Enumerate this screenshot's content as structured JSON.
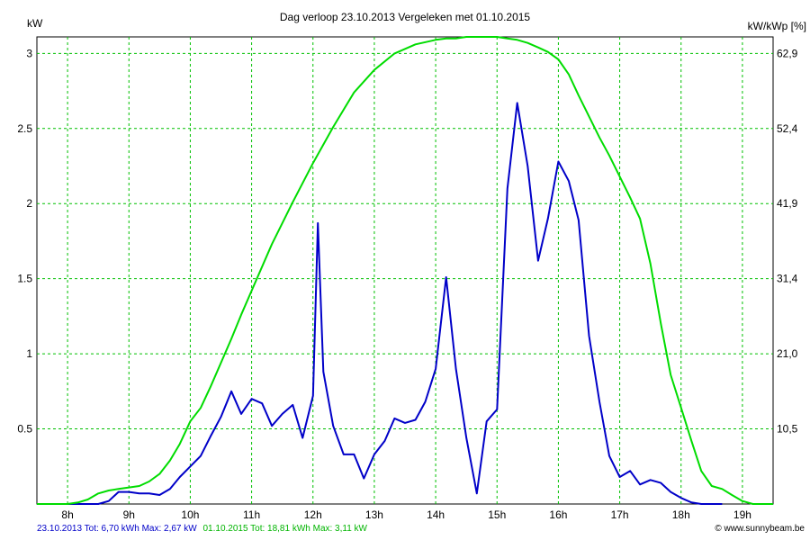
{
  "chart_data": {
    "type": "line",
    "title": "Dag  verloop 23.10.2013    Vergeleken met 01.10.2015",
    "ylabel_left": "kW",
    "ylabel_right": "kW/kWp [%]",
    "y_ticks": [
      "0.5",
      "1",
      "1.5",
      "2",
      "2.5",
      "3"
    ],
    "y_tick_values": [
      0.5,
      1,
      1.5,
      2,
      2.5,
      3
    ],
    "y2_ticks": [
      "10,5",
      "21,0",
      "31,4",
      "41,9",
      "52,4",
      "62,9"
    ],
    "x_ticks": [
      "8h",
      "9h",
      "10h",
      "11h",
      "12h",
      "13h",
      "14h",
      "15h",
      "16h",
      "17h",
      "18h",
      "19h"
    ],
    "x_tick_values": [
      8,
      9,
      10,
      11,
      12,
      13,
      14,
      15,
      16,
      17,
      18,
      19
    ],
    "xlim": [
      7.5,
      19.5
    ],
    "ylim": [
      0,
      3.11
    ],
    "grid": true,
    "colors": {
      "series1": "#0000c8",
      "series2": "#00dc00",
      "grid": "#00c000"
    },
    "series": [
      {
        "name": "23.10.2013",
        "color": "#0000c8",
        "x": [
          7.5,
          8.5,
          8.67,
          8.83,
          9.0,
          9.17,
          9.33,
          9.5,
          9.67,
          9.83,
          10.0,
          10.17,
          10.33,
          10.5,
          10.67,
          10.83,
          11.0,
          11.17,
          11.33,
          11.5,
          11.67,
          11.83,
          12.0,
          12.08,
          12.17,
          12.33,
          12.5,
          12.67,
          12.83,
          13.0,
          13.17,
          13.33,
          13.5,
          13.67,
          13.83,
          14.0,
          14.17,
          14.33,
          14.5,
          14.67,
          14.83,
          15.0,
          15.17,
          15.33,
          15.5,
          15.67,
          15.83,
          16.0,
          16.17,
          16.33,
          16.5,
          16.67,
          16.83,
          17.0,
          17.17,
          17.33,
          17.5,
          17.67,
          17.83,
          18.0,
          18.17,
          18.33,
          18.67
        ],
        "values": [
          0,
          0,
          0.02,
          0.08,
          0.08,
          0.07,
          0.07,
          0.06,
          0.1,
          0.18,
          0.25,
          0.32,
          0.45,
          0.58,
          0.75,
          0.6,
          0.7,
          0.67,
          0.52,
          0.6,
          0.66,
          0.44,
          0.72,
          1.87,
          0.88,
          0.52,
          0.33,
          0.33,
          0.17,
          0.33,
          0.42,
          0.57,
          0.54,
          0.56,
          0.68,
          0.9,
          1.51,
          0.9,
          0.44,
          0.07,
          0.55,
          0.63,
          2.1,
          2.67,
          2.25,
          1.62,
          1.9,
          2.28,
          2.15,
          1.89,
          1.12,
          0.68,
          0.32,
          0.18,
          0.22,
          0.13,
          0.16,
          0.14,
          0.08,
          0.04,
          0.01,
          0,
          0
        ]
      },
      {
        "name": "01.10.2015",
        "color": "#00dc00",
        "x": [
          7.5,
          8.0,
          8.17,
          8.33,
          8.5,
          8.67,
          8.83,
          9.0,
          9.17,
          9.33,
          9.5,
          9.67,
          9.83,
          10.0,
          10.17,
          10.33,
          10.5,
          10.67,
          10.83,
          11.0,
          11.33,
          11.67,
          12.0,
          12.33,
          12.67,
          13.0,
          13.33,
          13.67,
          14.0,
          14.17,
          14.33,
          14.5,
          14.67,
          14.83,
          15.0,
          15.17,
          15.33,
          15.5,
          15.67,
          15.83,
          16.0,
          16.17,
          16.33,
          16.5,
          16.67,
          16.83,
          17.0,
          17.17,
          17.33,
          17.5,
          17.67,
          17.83,
          18.0,
          18.17,
          18.33,
          18.5,
          18.67,
          18.83,
          19.0,
          19.17,
          19.5
        ],
        "values": [
          0,
          0,
          0.01,
          0.03,
          0.07,
          0.09,
          0.1,
          0.11,
          0.12,
          0.15,
          0.2,
          0.29,
          0.4,
          0.55,
          0.64,
          0.78,
          0.94,
          1.1,
          1.26,
          1.42,
          1.73,
          2.01,
          2.27,
          2.51,
          2.74,
          2.89,
          3.0,
          3.06,
          3.09,
          3.1,
          3.1,
          3.11,
          3.11,
          3.11,
          3.11,
          3.1,
          3.09,
          3.07,
          3.04,
          3.01,
          2.96,
          2.86,
          2.72,
          2.58,
          2.44,
          2.32,
          2.18,
          2.04,
          1.9,
          1.6,
          1.2,
          0.86,
          0.64,
          0.42,
          0.22,
          0.12,
          0.1,
          0.06,
          0.02,
          0,
          0
        ]
      }
    ]
  },
  "footer": {
    "series1_summary": "23.10.2013 Tot: 6,70 kWh Max: 2,67 kW",
    "series2_summary": "01.10.2015 Tot: 18,81 kWh Max: 3,11 kW",
    "site": "© www.sunnybeam.be"
  }
}
